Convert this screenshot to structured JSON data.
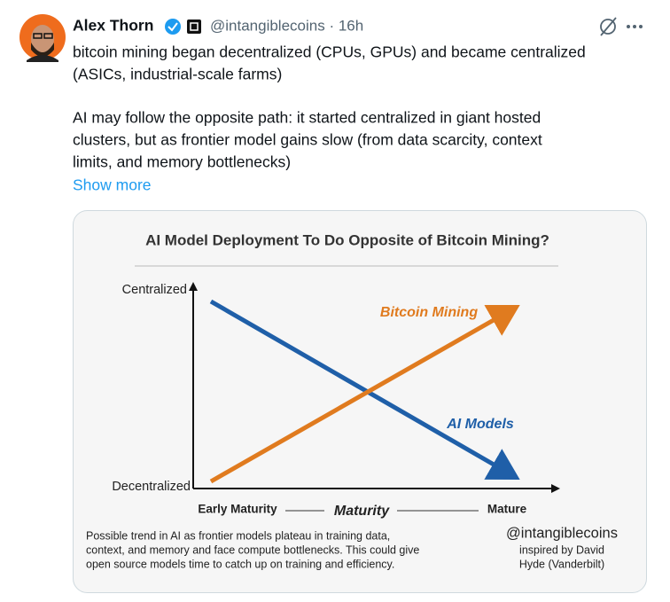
{
  "tweet": {
    "author": {
      "name": "Alex Thorn",
      "handle_time": "@intangiblecoins · 16h"
    },
    "paragraphs": [
      [
        "bitcoin mining began decentralized (CPUs, GPUs) and became centralized",
        "(ASICs, industrial-scale farms)"
      ],
      [
        "AI may follow the opposite path: it started centralized in giant hosted",
        "clusters, but as frontier model gains slow (from data scarcity, context",
        "limits, and memory bottlenecks)"
      ]
    ],
    "show_more": "Show more",
    "image": {
      "title": "AI Model Deployment To Do Opposite of Bitcoin Mining?",
      "y_top_label": "Centralized",
      "y_bottom_label": "Decentralized",
      "series_labels": [
        "Bitcoin Mining",
        "AI Models"
      ],
      "x_left_label": "Early Maturity",
      "x_axis_label": "Maturity",
      "x_right_label": "Mature",
      "caption": [
        "Possible trend in AI as frontier models plateau in training data,",
        "context, and memory and face compute bottlenecks. This could give",
        "open source models time to catch up on training and efficiency."
      ],
      "watermark": "@intangiblecoins",
      "credit": [
        "inspired by David",
        "Hyde (Vanderbilt)"
      ]
    }
  }
}
